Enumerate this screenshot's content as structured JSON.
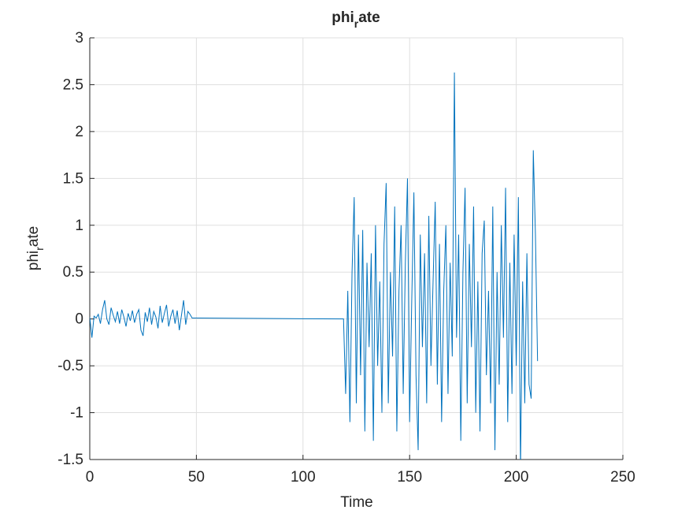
{
  "chart_data": {
    "type": "line",
    "title": [
      "phi",
      "r",
      "ate"
    ],
    "xlabel": "Time",
    "ylabel": [
      "phi",
      "r",
      "ate"
    ],
    "xlim": [
      0,
      250
    ],
    "xticks": [
      0,
      50,
      100,
      150,
      200,
      250
    ],
    "ylim": [
      -1.5,
      3
    ],
    "yticks": [
      -1.5,
      -1,
      -0.5,
      0,
      0.5,
      1,
      1.5,
      2,
      2.5,
      3
    ],
    "grid": true,
    "series": [
      {
        "name": "phi_rate",
        "color": "#0072bd",
        "x": [
          0,
          1,
          2,
          3,
          4,
          5,
          6,
          7,
          8,
          9,
          10,
          11,
          12,
          13,
          14,
          15,
          16,
          17,
          18,
          19,
          20,
          21,
          22,
          23,
          24,
          25,
          26,
          27,
          28,
          29,
          30,
          31,
          32,
          33,
          34,
          35,
          36,
          37,
          38,
          39,
          40,
          41,
          42,
          43,
          44,
          45,
          46,
          47,
          48,
          119,
          120,
          121,
          122,
          123,
          124,
          125,
          126,
          127,
          128,
          129,
          130,
          131,
          132,
          133,
          134,
          135,
          136,
          137,
          138,
          139,
          140,
          141,
          142,
          143,
          144,
          145,
          146,
          147,
          148,
          149,
          150,
          151,
          152,
          153,
          154,
          155,
          156,
          157,
          158,
          159,
          160,
          161,
          162,
          163,
          164,
          165,
          166,
          167,
          168,
          169,
          170,
          171,
          172,
          173,
          174,
          175,
          176,
          177,
          178,
          179,
          180,
          181,
          182,
          183,
          184,
          185,
          186,
          187,
          188,
          189,
          190,
          191,
          192,
          193,
          194,
          195,
          196,
          197,
          198,
          199,
          200,
          201,
          202,
          203,
          204,
          205,
          206,
          207,
          208,
          209,
          210
        ],
        "values": [
          0.02,
          -0.2,
          0.03,
          0.01,
          0.05,
          -0.05,
          0.1,
          0.2,
          0.0,
          -0.06,
          0.12,
          0.04,
          -0.03,
          0.08,
          -0.05,
          0.1,
          0.02,
          -0.08,
          0.06,
          -0.02,
          0.09,
          -0.04,
          0.05,
          0.1,
          -0.12,
          -0.18,
          0.07,
          -0.03,
          0.12,
          -0.06,
          0.08,
          0.02,
          -0.1,
          0.14,
          -0.04,
          0.06,
          0.15,
          -0.08,
          0.03,
          0.1,
          -0.05,
          0.09,
          -0.12,
          0.04,
          0.2,
          -0.06,
          0.08,
          0.05,
          0.01,
          0,
          -0.8,
          0.3,
          -1.1,
          0.5,
          1.3,
          -0.9,
          0.9,
          -0.6,
          0.95,
          -1.2,
          0.6,
          -0.3,
          0.7,
          -1.3,
          1.0,
          -0.5,
          0.4,
          -1.0,
          0.8,
          1.45,
          -0.9,
          0.5,
          -0.4,
          1.2,
          -1.2,
          0.3,
          1.0,
          -0.8,
          0.6,
          1.5,
          -1.1,
          0.2,
          1.35,
          -0.6,
          -1.4,
          0.9,
          -0.3,
          0.7,
          -0.9,
          1.1,
          -0.5,
          0.4,
          1.25,
          -0.7,
          0.8,
          -1.1,
          0.3,
          1.0,
          -0.8,
          0.6,
          -0.4,
          2.63,
          -0.2,
          0.9,
          -1.3,
          0.5,
          1.4,
          -0.9,
          0.8,
          -0.3,
          1.2,
          -1.0,
          0.4,
          -1.2,
          0.7,
          1.05,
          -0.6,
          0.3,
          -0.9,
          1.2,
          -1.4,
          0.5,
          -0.7,
          1.0,
          -0.2,
          1.4,
          -1.1,
          0.6,
          -0.8,
          0.9,
          -0.5,
          1.3,
          -1.6,
          0.4,
          -0.9,
          0.7,
          -0.7,
          -0.85,
          1.8,
          0.9,
          -0.45
        ]
      }
    ]
  }
}
